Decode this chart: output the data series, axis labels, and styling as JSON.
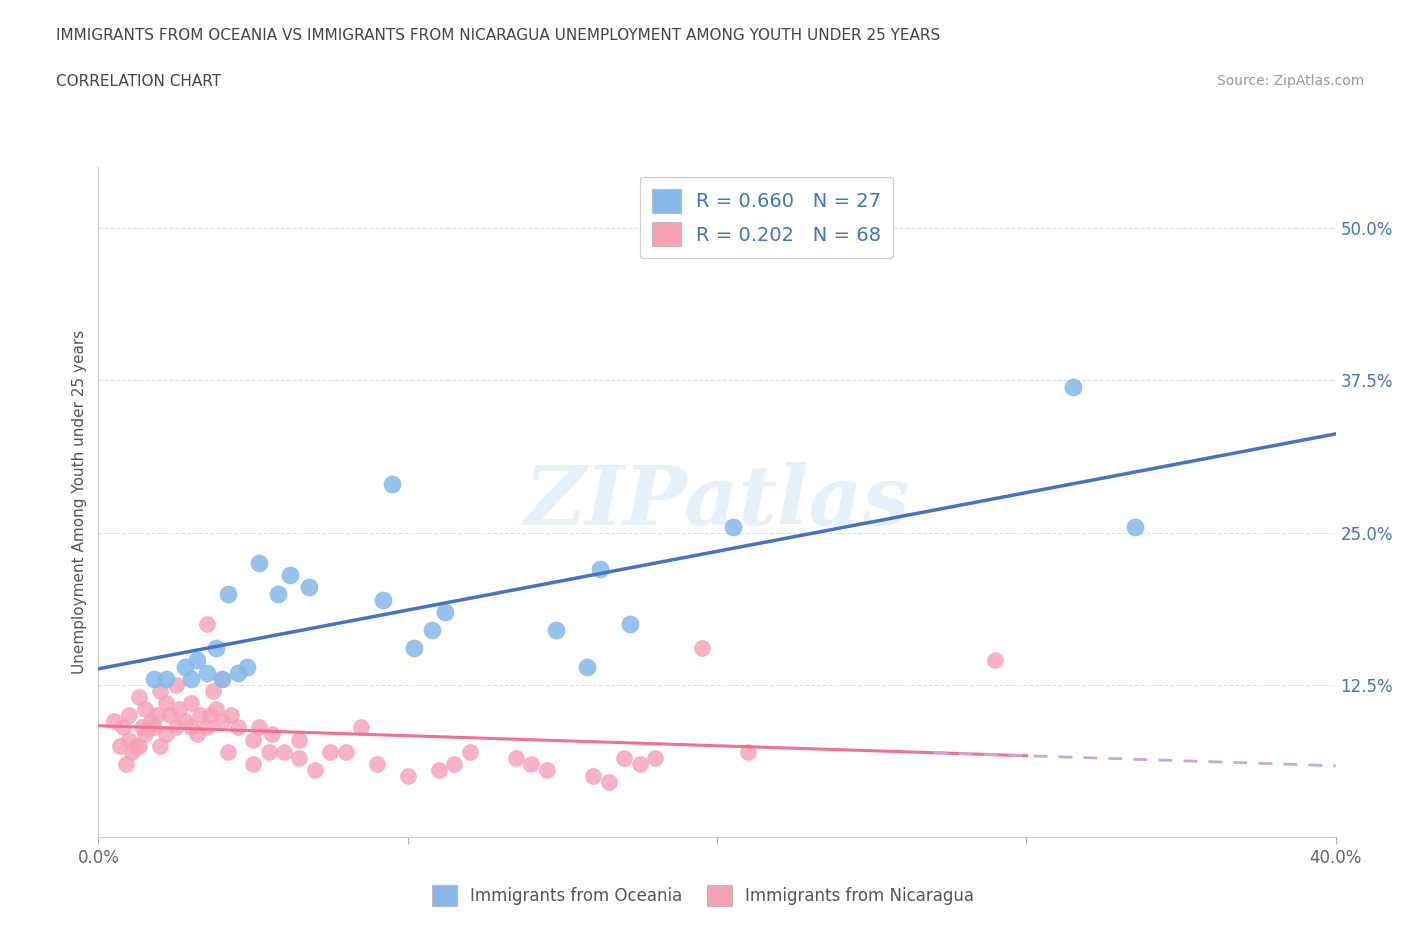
{
  "title_line1": "IMMIGRANTS FROM OCEANIA VS IMMIGRANTS FROM NICARAGUA UNEMPLOYMENT AMONG YOUTH UNDER 25 YEARS",
  "title_line2": "CORRELATION CHART",
  "source": "Source: ZipAtlas.com",
  "ylabel": "Unemployment Among Youth under 25 years",
  "xlim": [
    0.0,
    0.4
  ],
  "ylim": [
    0.0,
    0.55
  ],
  "xticks": [
    0.0,
    0.1,
    0.2,
    0.3,
    0.4
  ],
  "xticklabels": [
    "0.0%",
    "",
    "",
    "",
    "40.0%"
  ],
  "yticks": [
    0.0,
    0.125,
    0.25,
    0.375,
    0.5
  ],
  "yticklabels": [
    "",
    "12.5%",
    "25.0%",
    "37.5%",
    "50.0%"
  ],
  "oceania_color": "#85b8e8",
  "nicaragua_color": "#f5a0b5",
  "oceania_line_color": "#4472c4",
  "nicaragua_line_color": "#f07090",
  "nicaragua_dash_color": "#c8a8d8",
  "R_oceania": 0.66,
  "N_oceania": 27,
  "R_nicaragua": 0.202,
  "N_nicaragua": 68,
  "oceania_x": [
    0.018,
    0.022,
    0.028,
    0.03,
    0.032,
    0.035,
    0.038,
    0.04,
    0.042,
    0.045,
    0.048,
    0.052,
    0.058,
    0.062,
    0.068,
    0.092,
    0.095,
    0.102,
    0.108,
    0.112,
    0.148,
    0.158,
    0.162,
    0.172,
    0.205,
    0.315,
    0.335
  ],
  "oceania_y": [
    0.13,
    0.13,
    0.14,
    0.13,
    0.145,
    0.135,
    0.155,
    0.13,
    0.2,
    0.135,
    0.14,
    0.225,
    0.2,
    0.215,
    0.205,
    0.195,
    0.29,
    0.155,
    0.17,
    0.185,
    0.17,
    0.14,
    0.22,
    0.175,
    0.255,
    0.37,
    0.255
  ],
  "nicaragua_x": [
    0.005,
    0.007,
    0.008,
    0.009,
    0.01,
    0.01,
    0.011,
    0.012,
    0.013,
    0.013,
    0.014,
    0.015,
    0.015,
    0.016,
    0.017,
    0.018,
    0.019,
    0.02,
    0.02,
    0.022,
    0.022,
    0.023,
    0.025,
    0.025,
    0.026,
    0.028,
    0.03,
    0.03,
    0.032,
    0.033,
    0.035,
    0.035,
    0.036,
    0.037,
    0.038,
    0.04,
    0.04,
    0.042,
    0.043,
    0.045,
    0.05,
    0.05,
    0.052,
    0.055,
    0.056,
    0.06,
    0.065,
    0.065,
    0.07,
    0.075,
    0.08,
    0.085,
    0.09,
    0.1,
    0.11,
    0.115,
    0.12,
    0.135,
    0.14,
    0.145,
    0.16,
    0.165,
    0.17,
    0.175,
    0.18,
    0.195,
    0.21,
    0.29
  ],
  "nicaragua_y": [
    0.095,
    0.075,
    0.09,
    0.06,
    0.08,
    0.1,
    0.07,
    0.075,
    0.075,
    0.115,
    0.09,
    0.085,
    0.105,
    0.09,
    0.095,
    0.09,
    0.1,
    0.075,
    0.12,
    0.085,
    0.11,
    0.1,
    0.09,
    0.125,
    0.105,
    0.095,
    0.09,
    0.11,
    0.085,
    0.1,
    0.09,
    0.175,
    0.1,
    0.12,
    0.105,
    0.095,
    0.13,
    0.07,
    0.1,
    0.09,
    0.06,
    0.08,
    0.09,
    0.07,
    0.085,
    0.07,
    0.065,
    0.08,
    0.055,
    0.07,
    0.07,
    0.09,
    0.06,
    0.05,
    0.055,
    0.06,
    0.07,
    0.065,
    0.06,
    0.055,
    0.05,
    0.045,
    0.065,
    0.06,
    0.065,
    0.155,
    0.07,
    0.145
  ],
  "watermark_text": "ZIPatlas",
  "background_color": "#ffffff",
  "grid_color": "#dddddd"
}
